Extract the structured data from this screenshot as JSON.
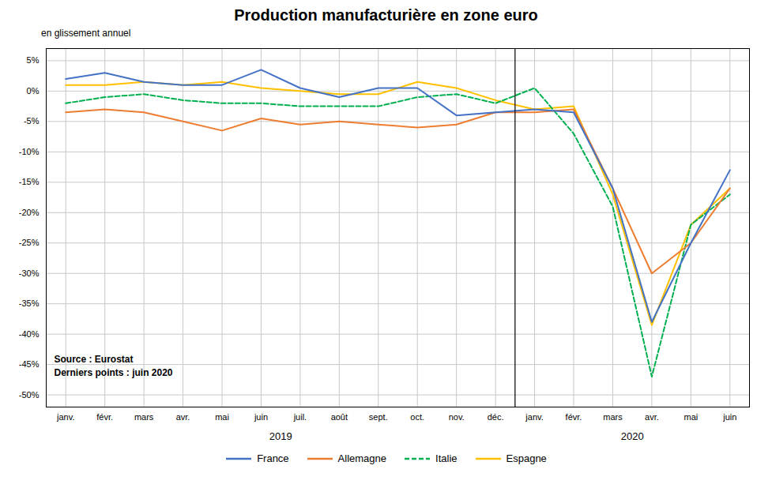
{
  "chart_data": {
    "type": "line",
    "title": "Production manufacturière en zone euro",
    "subtitle": "en glissement annuel",
    "source": "Source : Eurostat\nDerniers points : juin 2020",
    "categories": [
      "janv.",
      "févr.",
      "mars",
      "avr.",
      "mai",
      "juin",
      "juil.",
      "août",
      "sept.",
      "oct.",
      "nov.",
      "déc.",
      "janv.",
      "févr.",
      "mars",
      "avr.",
      "mai",
      "juin"
    ],
    "groups": [
      {
        "name": "2019",
        "size": 12
      },
      {
        "name": "2020",
        "size": 6
      }
    ],
    "series": [
      {
        "name": "France",
        "color": "#4472c4",
        "line_style": "solid",
        "values": [
          2.0,
          3.0,
          1.5,
          1.0,
          1.0,
          3.5,
          0.5,
          -1.0,
          0.5,
          0.5,
          -4.0,
          -3.5,
          -3.0,
          -3.5,
          -16.0,
          -38.0,
          -25.0,
          -13.0
        ]
      },
      {
        "name": "Allemagne",
        "color": "#ed7d31",
        "line_style": "solid",
        "values": [
          -3.5,
          -3.0,
          -3.5,
          -5.0,
          -6.5,
          -4.5,
          -5.5,
          -5.0,
          -5.5,
          -6.0,
          -5.5,
          -3.5,
          -3.5,
          -3.0,
          -16.0,
          -30.0,
          -25.0,
          -16.0
        ]
      },
      {
        "name": "Italie",
        "color": "#00b050",
        "line_style": "dashed",
        "values": [
          -2.0,
          -1.0,
          -0.5,
          -1.5,
          -2.0,
          -2.0,
          -2.5,
          -2.5,
          -2.5,
          -1.0,
          -0.5,
          -2.0,
          0.5,
          -7.0,
          -19.0,
          -47.0,
          -22.0,
          -17.0
        ]
      },
      {
        "name": "Espagne",
        "color": "#ffc000",
        "line_style": "solid",
        "values": [
          1.0,
          1.0,
          1.5,
          1.0,
          1.5,
          0.5,
          0.0,
          -0.5,
          -0.5,
          1.5,
          0.5,
          -1.5,
          -3.0,
          -2.5,
          -17.0,
          -38.5,
          -22.0,
          -16.0
        ]
      }
    ],
    "ylim": [
      -52,
      7
    ],
    "yticks": [
      {
        "value": 5,
        "label": "5%"
      },
      {
        "value": 0,
        "label": "0%"
      },
      {
        "value": -5,
        "label": "-5%"
      },
      {
        "value": -10,
        "label": "-10%"
      },
      {
        "value": -15,
        "label": "-15%"
      },
      {
        "value": -20,
        "label": "-20%"
      },
      {
        "value": -25,
        "label": "-25%"
      },
      {
        "value": -30,
        "label": "-30%"
      },
      {
        "value": -35,
        "label": "-35%"
      },
      {
        "value": -40,
        "label": "-40%"
      },
      {
        "value": -45,
        "label": "-45%"
      },
      {
        "value": -50,
        "label": "-50%"
      }
    ],
    "grid": true,
    "legend": "bottom"
  }
}
